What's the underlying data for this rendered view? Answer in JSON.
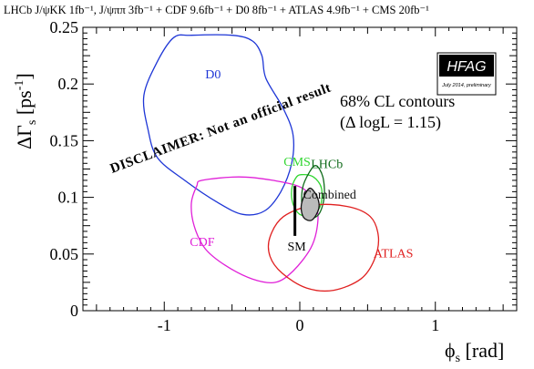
{
  "chart_data": {
    "type": "contour",
    "header_text": "LHCb J/ψKK 1fb⁻¹, J/ψππ 3fb⁻¹ + CDF 9.6fb⁻¹ + D0 8fb⁻¹ + ATLAS 4.9fb⁻¹ + CMS 20fb⁻¹",
    "xlabel": "ϕs [rad]",
    "ylabel": "ΔΓs [ps⁻¹]",
    "xlim": [
      -1.6,
      1.6
    ],
    "ylim": [
      0,
      0.25
    ],
    "x_ticks": [
      -1,
      0,
      1
    ],
    "x_tick_labels": [
      "-1",
      "0",
      "1"
    ],
    "y_ticks": [
      0,
      0.05,
      0.1,
      0.15,
      0.2,
      0.25
    ],
    "y_tick_labels": [
      "0",
      "0.05",
      "0.1",
      "0.15",
      "0.2",
      "0.25"
    ],
    "cl_label_1": "68% CL contours",
    "cl_label_2": "(Δ logL = 1.15)",
    "disclaimer": "DISCLAIMER: Not an official result",
    "hfag_logo": "HFAG",
    "hfag_sub": "July 2014, preliminary",
    "sm_label": "SM",
    "sm_point": {
      "x": -0.036,
      "y": 0.088,
      "y_err": 0.022
    },
    "series": [
      {
        "name": "D0",
        "color": "#1e36d6",
        "label_pos": [
          -0.64,
          0.205
        ],
        "points": [
          [
            -0.93,
            0.241
          ],
          [
            -0.8,
            0.243
          ],
          [
            -0.5,
            0.243
          ],
          [
            -0.35,
            0.238
          ],
          [
            -0.28,
            0.225
          ],
          [
            -0.25,
            0.205
          ],
          [
            -0.12,
            0.178
          ],
          [
            -0.05,
            0.155
          ],
          [
            -0.06,
            0.13
          ],
          [
            -0.14,
            0.105
          ],
          [
            -0.26,
            0.088
          ],
          [
            -0.42,
            0.085
          ],
          [
            -0.6,
            0.095
          ],
          [
            -0.85,
            0.115
          ],
          [
            -1.05,
            0.135
          ],
          [
            -1.12,
            0.16
          ],
          [
            -1.15,
            0.19
          ],
          [
            -1.05,
            0.22
          ],
          [
            -0.93,
            0.241
          ]
        ]
      },
      {
        "name": "CDF",
        "color": "#e020d8",
        "label_pos": [
          -0.72,
          0.057
        ],
        "points": [
          [
            -0.72,
            0.115
          ],
          [
            -0.45,
            0.118
          ],
          [
            -0.2,
            0.115
          ],
          [
            0.02,
            0.108
          ],
          [
            0.12,
            0.092
          ],
          [
            0.13,
            0.075
          ],
          [
            0.08,
            0.055
          ],
          [
            -0.05,
            0.035
          ],
          [
            -0.18,
            0.025
          ],
          [
            -0.35,
            0.028
          ],
          [
            -0.55,
            0.04
          ],
          [
            -0.7,
            0.055
          ],
          [
            -0.78,
            0.075
          ],
          [
            -0.8,
            0.095
          ],
          [
            -0.76,
            0.11
          ],
          [
            -0.72,
            0.115
          ]
        ]
      },
      {
        "name": "CMS",
        "color": "#30d630",
        "label_pos": [
          -0.02,
          0.128
        ],
        "points": [
          [
            0.01,
            0.12
          ],
          [
            0.1,
            0.118
          ],
          [
            0.16,
            0.108
          ],
          [
            0.15,
            0.092
          ],
          [
            0.08,
            0.084
          ],
          [
            0.0,
            0.085
          ],
          [
            -0.05,
            0.094
          ],
          [
            -0.06,
            0.107
          ],
          [
            -0.03,
            0.117
          ],
          [
            0.01,
            0.12
          ]
        ]
      },
      {
        "name": "LHCb",
        "color": "#0f6b1a",
        "label_pos": [
          0.2,
          0.126
        ],
        "points": [
          [
            0.12,
            0.128
          ],
          [
            0.17,
            0.118
          ],
          [
            0.18,
            0.1
          ],
          [
            0.14,
            0.085
          ],
          [
            0.07,
            0.082
          ],
          [
            0.02,
            0.09
          ],
          [
            0.02,
            0.108
          ],
          [
            0.07,
            0.122
          ],
          [
            0.12,
            0.128
          ]
        ]
      },
      {
        "name": "ATLAS",
        "color": "#e02020",
        "label_pos": [
          0.69,
          0.047
        ],
        "points": [
          [
            -0.22,
            0.065
          ],
          [
            -0.12,
            0.083
          ],
          [
            0.1,
            0.093
          ],
          [
            0.35,
            0.092
          ],
          [
            0.52,
            0.083
          ],
          [
            0.58,
            0.065
          ],
          [
            0.55,
            0.045
          ],
          [
            0.45,
            0.028
          ],
          [
            0.25,
            0.018
          ],
          [
            0.05,
            0.02
          ],
          [
            -0.13,
            0.033
          ],
          [
            -0.22,
            0.048
          ],
          [
            -0.22,
            0.065
          ]
        ]
      },
      {
        "name": "Combined",
        "color": "#111111",
        "fill": "#bbbbbb",
        "label_pos": [
          0.22,
          0.099
        ],
        "points": [
          [
            0.08,
            0.108
          ],
          [
            0.13,
            0.1
          ],
          [
            0.14,
            0.09
          ],
          [
            0.09,
            0.08
          ],
          [
            0.03,
            0.082
          ],
          [
            0.01,
            0.092
          ],
          [
            0.04,
            0.103
          ],
          [
            0.08,
            0.108
          ]
        ]
      }
    ]
  }
}
